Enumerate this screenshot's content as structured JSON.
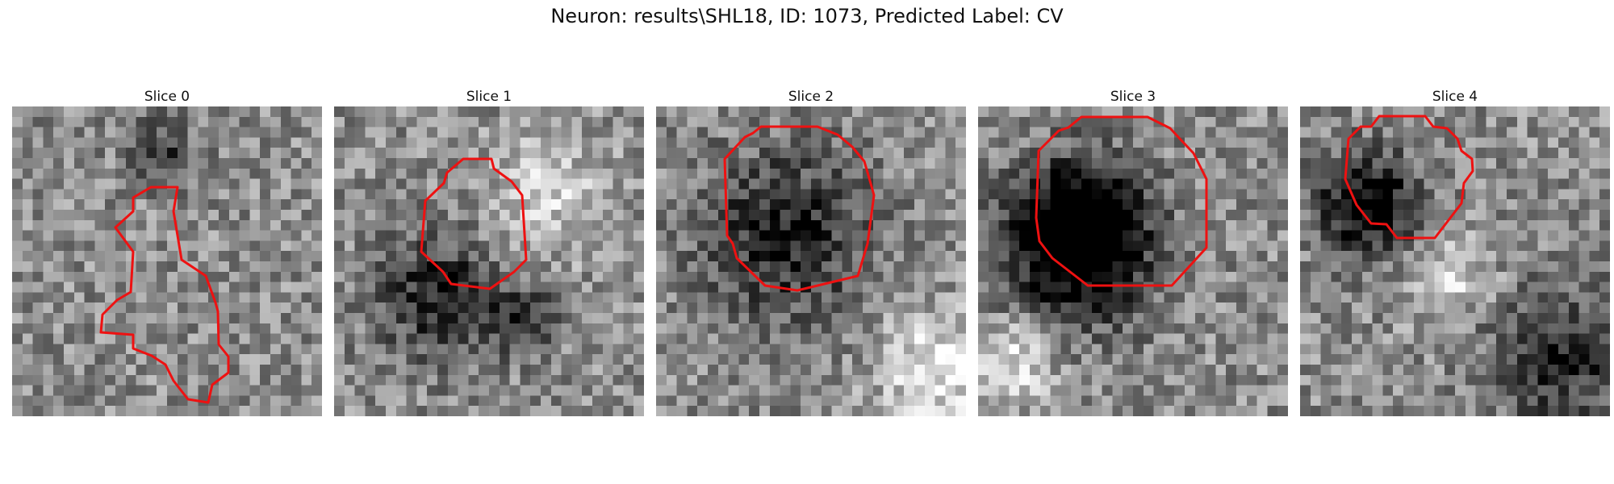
{
  "figure": {
    "title": "Neuron: results\\SHL18, ID: 1073, Predicted Label: CV"
  },
  "panels": [
    {
      "title": "Slice 0"
    },
    {
      "title": "Slice 1"
    },
    {
      "title": "Slice 2"
    },
    {
      "title": "Slice 3"
    },
    {
      "title": "Slice 4"
    }
  ],
  "colors": {
    "contour": "#ee1111"
  }
}
